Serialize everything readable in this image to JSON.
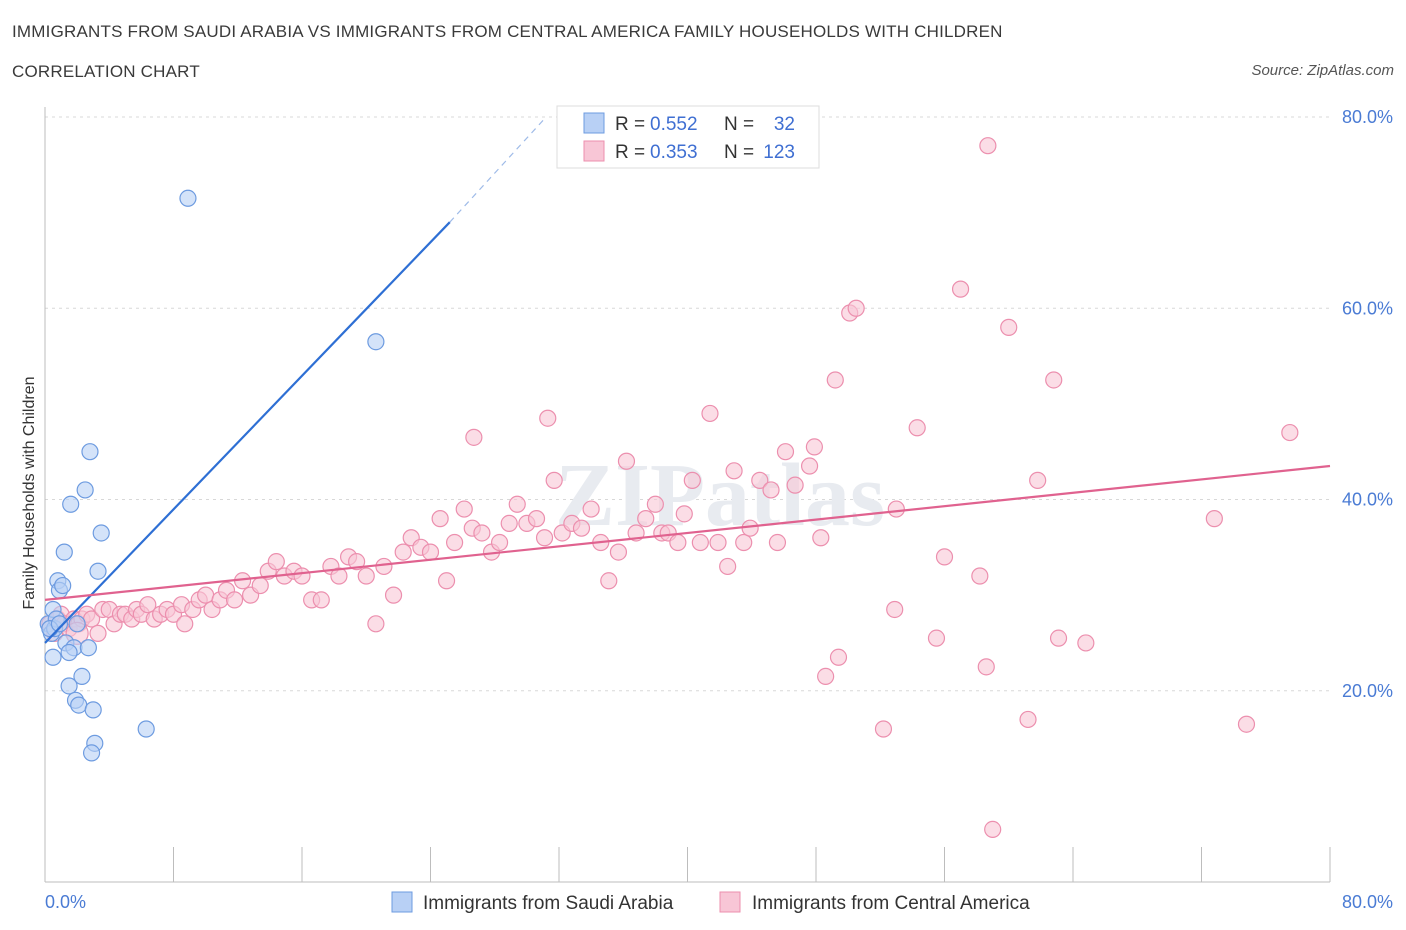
{
  "header": {
    "title": "IMMIGRANTS FROM SAUDI ARABIA VS IMMIGRANTS FROM CENTRAL AMERICA FAMILY HOUSEHOLDS WITH CHILDREN",
    "subtitle": "CORRELATION CHART",
    "source": "Source: ZipAtlas.com"
  },
  "colors": {
    "blue_fill": "#b8d0f5",
    "blue_stroke": "#6d9be0",
    "blue_line": "#2e6fd4",
    "pink_fill": "#f8c6d6",
    "pink_stroke": "#ec8fae",
    "pink_line": "#e0628f",
    "tick_text": "#4a7bd4",
    "grid": "#d8d8d8"
  },
  "legend": {
    "rows": [
      {
        "r_label": "R = ",
        "r_value": "0.552",
        "n_label": "N = ",
        "n_value": "32",
        "series": "blue"
      },
      {
        "r_label": "R = ",
        "r_value": "0.353",
        "n_label": "N = ",
        "n_value": "123",
        "series": "pink"
      }
    ]
  },
  "watermark": "ZIPatlas",
  "chart_data": {
    "type": "scatter",
    "title": "IMMIGRANTS FROM SAUDI ARABIA VS IMMIGRANTS FROM CENTRAL AMERICA FAMILY HOUSEHOLDS WITH CHILDREN",
    "xlabel": "",
    "ylabel": "Family Households with Children",
    "xlim": [
      0,
      80
    ],
    "ylim": [
      0,
      80
    ],
    "x_tick_labels": [
      "0.0%",
      "80.0%"
    ],
    "y_tick_labels": [
      "20.0%",
      "40.0%",
      "60.0%",
      "80.0%"
    ],
    "y_ticks": [
      20,
      40,
      60,
      80
    ],
    "grid": true,
    "legend_position": "top-center",
    "series": [
      {
        "name": "Immigrants from Saudi Arabia",
        "color": "blue",
        "R": 0.552,
        "N": 32,
        "trend": {
          "x0": 0,
          "y0": 25.0,
          "x1": 25.2,
          "y1": 69.0,
          "dash_to_x": 31.2,
          "dash_to_y": 80.0
        },
        "points": [
          [
            0.2,
            27.0
          ],
          [
            0.4,
            26.0
          ],
          [
            0.5,
            28.5
          ],
          [
            0.6,
            26.5
          ],
          [
            0.7,
            27.5
          ],
          [
            0.5,
            23.5
          ],
          [
            0.8,
            31.5
          ],
          [
            0.9,
            30.5
          ],
          [
            1.1,
            31.0
          ],
          [
            1.2,
            34.5
          ],
          [
            1.3,
            25.0
          ],
          [
            1.5,
            20.5
          ],
          [
            1.6,
            39.5
          ],
          [
            1.8,
            24.5
          ],
          [
            1.9,
            19.0
          ],
          [
            2.1,
            18.5
          ],
          [
            2.3,
            21.5
          ],
          [
            2.5,
            41.0
          ],
          [
            2.7,
            24.5
          ],
          [
            2.8,
            45.0
          ],
          [
            3.0,
            18.0
          ],
          [
            3.1,
            14.5
          ],
          [
            3.3,
            32.5
          ],
          [
            3.5,
            36.5
          ],
          [
            2.9,
            13.5
          ],
          [
            1.5,
            24.0
          ],
          [
            0.3,
            26.5
          ],
          [
            2.0,
            27.0
          ],
          [
            6.3,
            16.0
          ],
          [
            8.9,
            71.5
          ],
          [
            20.6,
            56.5
          ],
          [
            0.9,
            27.0
          ]
        ]
      },
      {
        "name": "Immigrants from Central America",
        "color": "pink",
        "R": 0.353,
        "N": 123,
        "trend": {
          "x0": 0,
          "y0": 29.5,
          "x1": 80,
          "y1": 43.5
        },
        "points": [
          [
            0.3,
            27.0
          ],
          [
            0.6,
            26.0
          ],
          [
            0.8,
            27.5
          ],
          [
            1.0,
            28.0
          ],
          [
            1.2,
            27.0
          ],
          [
            1.5,
            26.5
          ],
          [
            1.8,
            27.5
          ],
          [
            2.1,
            27.0
          ],
          [
            2.3,
            27.5
          ],
          [
            2.6,
            28.0
          ],
          [
            2.9,
            27.5
          ],
          [
            3.3,
            26.0
          ],
          [
            3.6,
            28.5
          ],
          [
            4.0,
            28.5
          ],
          [
            4.3,
            27.0
          ],
          [
            4.7,
            28.0
          ],
          [
            5.0,
            28.0
          ],
          [
            5.4,
            27.5
          ],
          [
            5.7,
            28.5
          ],
          [
            6.0,
            28.0
          ],
          [
            6.4,
            29.0
          ],
          [
            6.8,
            27.5
          ],
          [
            7.2,
            28.0
          ],
          [
            7.6,
            28.5
          ],
          [
            8.0,
            28.0
          ],
          [
            8.5,
            29.0
          ],
          [
            8.7,
            27.0
          ],
          [
            9.2,
            28.5
          ],
          [
            9.6,
            29.5
          ],
          [
            10.0,
            30.0
          ],
          [
            10.4,
            28.5
          ],
          [
            10.9,
            29.5
          ],
          [
            11.3,
            30.5
          ],
          [
            11.8,
            29.5
          ],
          [
            12.3,
            31.5
          ],
          [
            12.8,
            30.0
          ],
          [
            13.4,
            31.0
          ],
          [
            13.9,
            32.5
          ],
          [
            14.4,
            33.5
          ],
          [
            14.9,
            32.0
          ],
          [
            15.5,
            32.5
          ],
          [
            16.0,
            32.0
          ],
          [
            16.6,
            29.5
          ],
          [
            17.2,
            29.5
          ],
          [
            17.8,
            33.0
          ],
          [
            18.3,
            32.0
          ],
          [
            18.9,
            34.0
          ],
          [
            19.4,
            33.5
          ],
          [
            20.0,
            32.0
          ],
          [
            20.6,
            27.0
          ],
          [
            21.1,
            33.0
          ],
          [
            21.7,
            30.0
          ],
          [
            22.3,
            34.5
          ],
          [
            22.8,
            36.0
          ],
          [
            23.4,
            35.0
          ],
          [
            24.0,
            34.5
          ],
          [
            24.6,
            38.0
          ],
          [
            25.0,
            31.5
          ],
          [
            25.5,
            35.5
          ],
          [
            26.1,
            39.0
          ],
          [
            26.6,
            37.0
          ],
          [
            27.2,
            36.5
          ],
          [
            26.7,
            46.5
          ],
          [
            27.8,
            34.5
          ],
          [
            28.3,
            35.5
          ],
          [
            28.9,
            37.5
          ],
          [
            29.4,
            39.5
          ],
          [
            30.0,
            37.5
          ],
          [
            30.6,
            38.0
          ],
          [
            31.1,
            36.0
          ],
          [
            31.3,
            48.5
          ],
          [
            31.7,
            42.0
          ],
          [
            32.2,
            36.5
          ],
          [
            32.8,
            37.5
          ],
          [
            33.4,
            37.0
          ],
          [
            34.0,
            39.0
          ],
          [
            34.6,
            35.5
          ],
          [
            35.1,
            31.5
          ],
          [
            35.7,
            34.5
          ],
          [
            36.2,
            44.0
          ],
          [
            36.8,
            36.5
          ],
          [
            37.4,
            38.0
          ],
          [
            38.0,
            39.5
          ],
          [
            38.4,
            36.5
          ],
          [
            38.8,
            36.5
          ],
          [
            39.4,
            35.5
          ],
          [
            39.8,
            38.5
          ],
          [
            40.3,
            42.0
          ],
          [
            40.8,
            35.5
          ],
          [
            41.4,
            49.0
          ],
          [
            41.9,
            35.5
          ],
          [
            42.5,
            33.0
          ],
          [
            42.9,
            43.0
          ],
          [
            43.5,
            35.5
          ],
          [
            43.9,
            37.0
          ],
          [
            44.5,
            42.0
          ],
          [
            45.2,
            41.0
          ],
          [
            45.6,
            35.5
          ],
          [
            46.1,
            45.0
          ],
          [
            46.7,
            41.5
          ],
          [
            47.6,
            43.5
          ],
          [
            47.9,
            45.5
          ],
          [
            48.3,
            36.0
          ],
          [
            49.2,
            52.5
          ],
          [
            48.6,
            21.5
          ],
          [
            49.4,
            23.5
          ],
          [
            50.1,
            59.5
          ],
          [
            50.5,
            60.0
          ],
          [
            52.2,
            16.0
          ],
          [
            52.9,
            28.5
          ],
          [
            53.0,
            39.0
          ],
          [
            54.3,
            47.5
          ],
          [
            55.5,
            25.5
          ],
          [
            56.0,
            34.0
          ],
          [
            57.0,
            62.0
          ],
          [
            58.2,
            32.0
          ],
          [
            58.6,
            22.5
          ],
          [
            59.0,
            5.5
          ],
          [
            60.0,
            58.0
          ],
          [
            61.2,
            17.0
          ],
          [
            61.8,
            42.0
          ],
          [
            62.8,
            52.5
          ],
          [
            63.1,
            25.5
          ],
          [
            64.8,
            25.0
          ],
          [
            72.8,
            38.0
          ],
          [
            74.8,
            16.5
          ],
          [
            77.5,
            47.0
          ]
        ]
      }
    ]
  },
  "bottom_legend": {
    "items": [
      {
        "label": "Immigrants from Saudi Arabia",
        "series": "blue"
      },
      {
        "label": "Immigrants from Central America",
        "series": "pink"
      }
    ]
  },
  "outlier_pink": {
    "x": 58.7,
    "y": 77.0
  }
}
